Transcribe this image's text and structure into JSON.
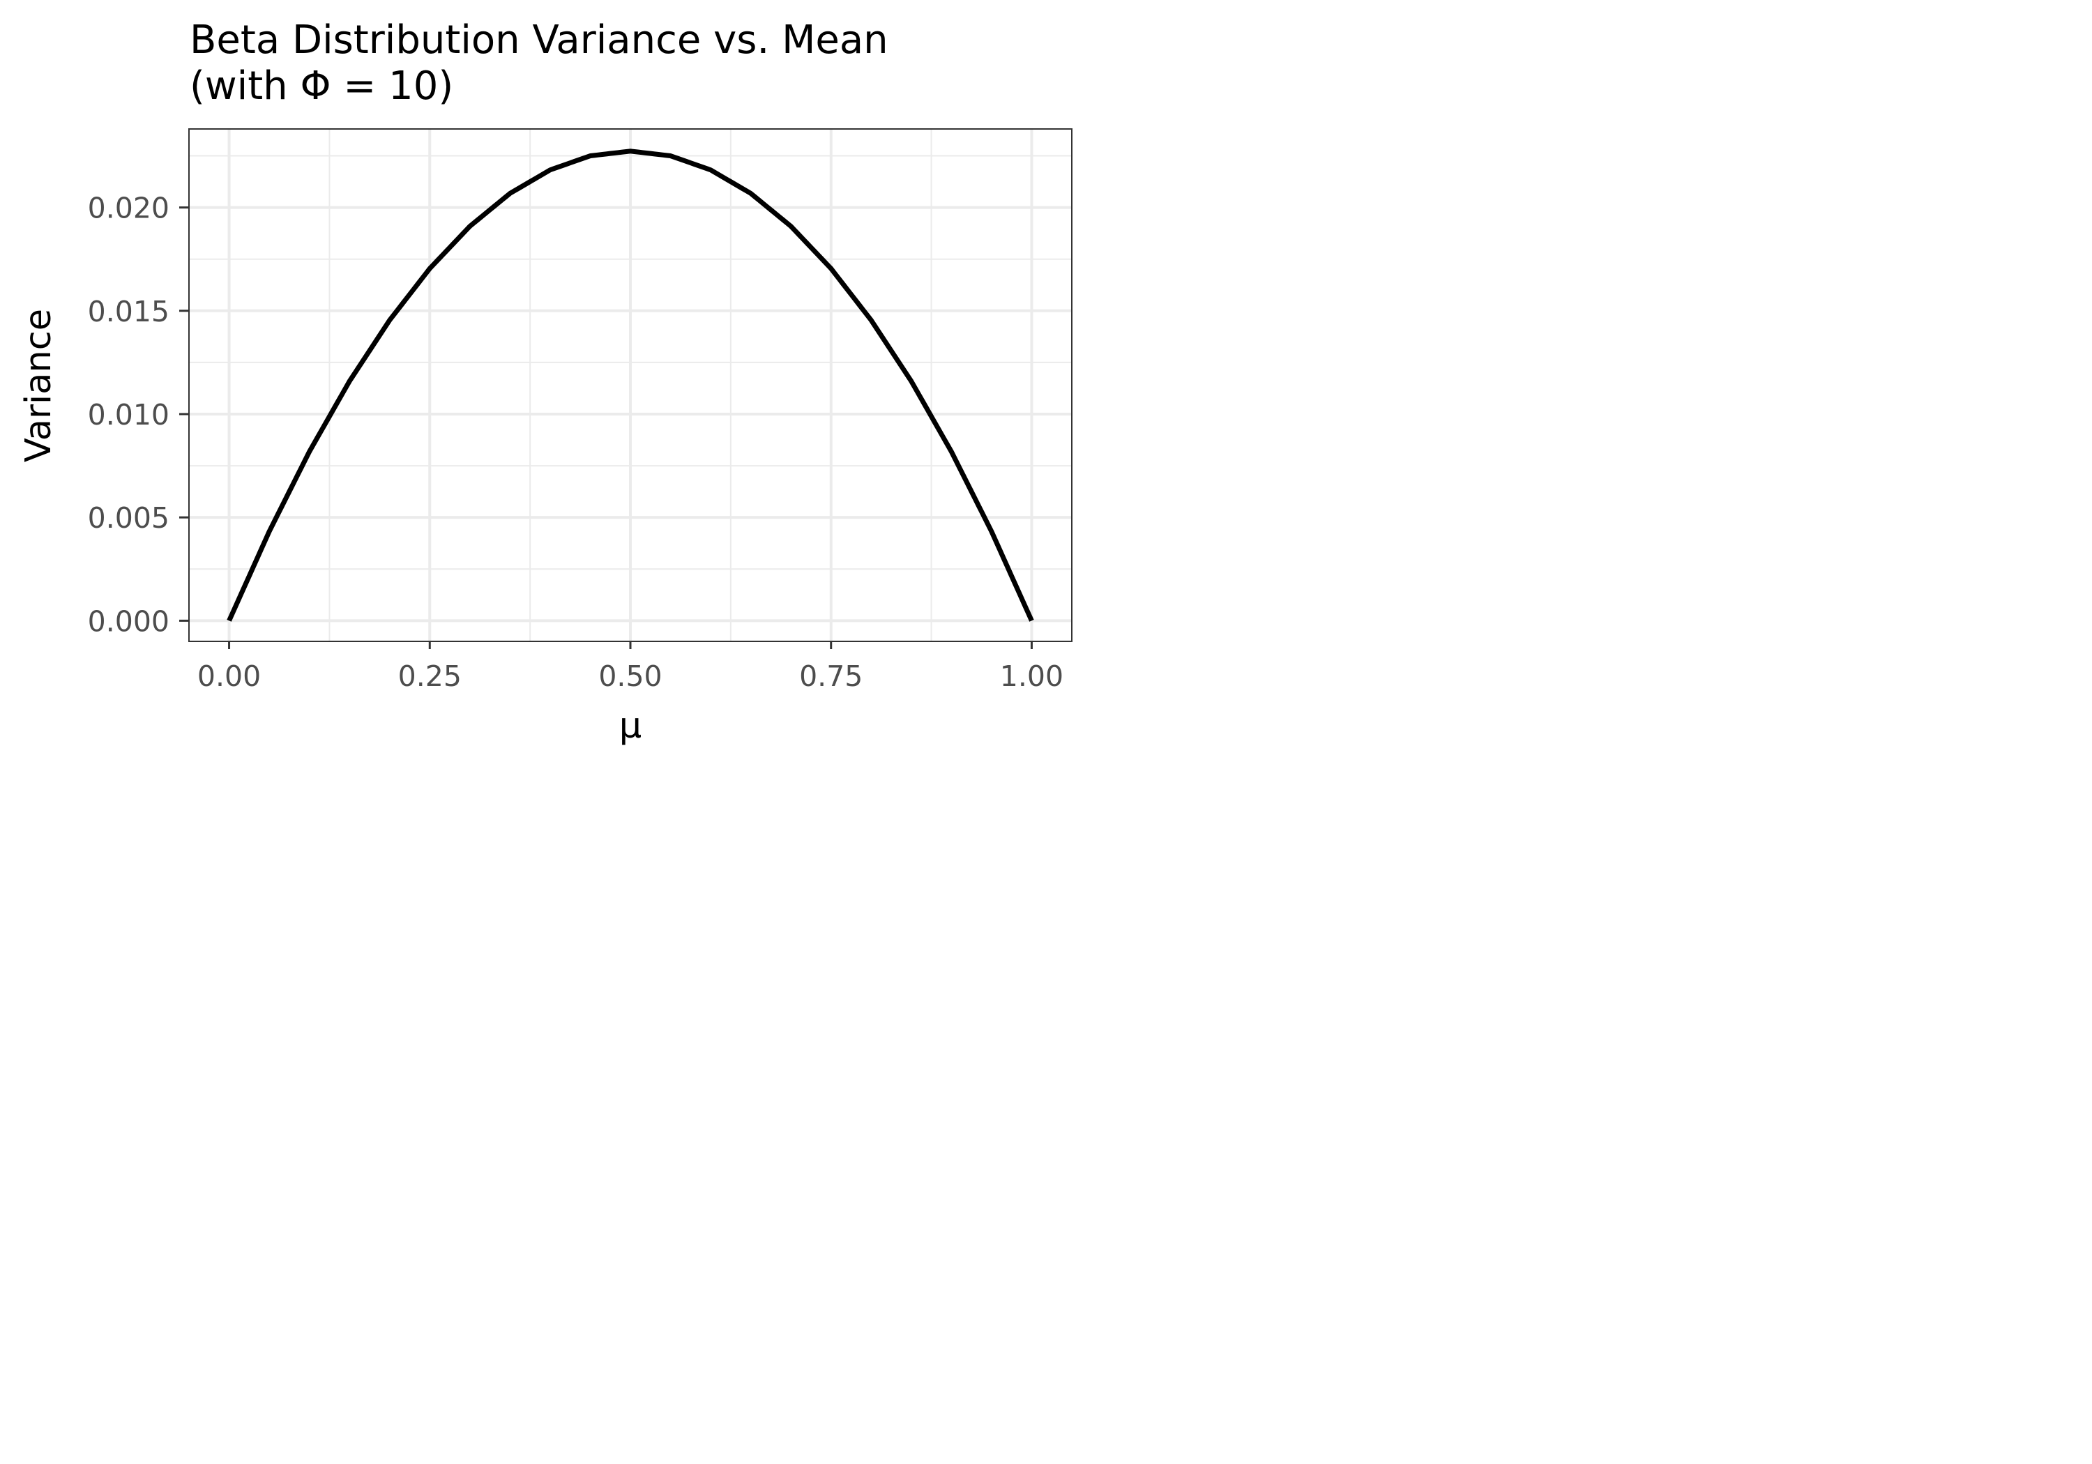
{
  "chart_data": {
    "type": "line",
    "title": "Beta Distribution Variance vs. Mean",
    "subtitle": "(with Φ = 10)",
    "xlabel": "μ",
    "ylabel": "Variance",
    "xlim": [
      -0.05,
      1.05
    ],
    "ylim": [
      -0.001,
      0.0238
    ],
    "x_ticks": [
      0,
      0.25,
      0.5,
      0.75,
      1
    ],
    "x_tick_labels": [
      "0.00",
      "0.25",
      "0.50",
      "0.75",
      "1.00"
    ],
    "y_ticks": [
      0,
      0.005,
      0.01,
      0.015,
      0.02
    ],
    "y_tick_labels": [
      "0.000",
      "0.005",
      "0.010",
      "0.015",
      "0.020"
    ],
    "grid": true,
    "series": [
      {
        "color": "#000000",
        "x": [
          0,
          0.05,
          0.1,
          0.15,
          0.2,
          0.25,
          0.3,
          0.35,
          0.4,
          0.45,
          0.5,
          0.55,
          0.6,
          0.65,
          0.7,
          0.75,
          0.8,
          0.85,
          0.9,
          0.95,
          1
        ],
        "y": [
          0,
          0.004318,
          0.008182,
          0.011591,
          0.014545,
          0.017045,
          0.019091,
          0.020682,
          0.021818,
          0.0225,
          0.022727,
          0.0225,
          0.021818,
          0.020682,
          0.019091,
          0.017045,
          0.014545,
          0.011591,
          0.008182,
          0.004318,
          0
        ]
      }
    ]
  }
}
